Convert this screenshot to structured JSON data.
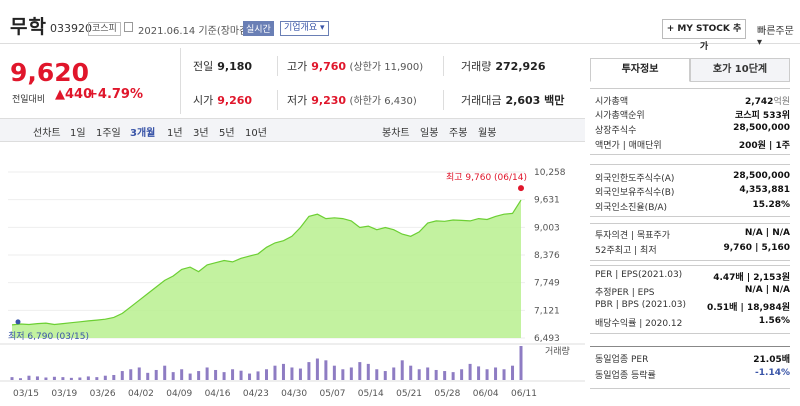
{
  "header": {
    "name": "무학",
    "code": "033920",
    "market": "코스피",
    "basedate": "2021.06.14 기준(장마감)",
    "realtime": "실시간",
    "corp": "기업개요",
    "corp_arrow": "▾",
    "mystock": "+ MY STOCK 추가",
    "quick": "빠른주문",
    "quick_arrow": "▾"
  },
  "price": {
    "current": "9,620",
    "change_label": "전일대비",
    "change": "▲440",
    "change_pct": "+4.79%"
  },
  "quotes": {
    "prev_label": "전일",
    "prev": "9,180",
    "high_label": "고가",
    "high": "9,760",
    "upper": "(상한가 11,900)",
    "volume_label": "거래량",
    "volume": "272,926",
    "open_label": "시가",
    "open": "9,260",
    "low_label": "저가",
    "low": "9,230",
    "lower": "(하한가 6,430)",
    "amount_label": "거래대금",
    "amount": "2,603 백만"
  },
  "period_tabs": {
    "line": "선차트",
    "d1": "1일",
    "w1": "1주일",
    "m3": "3개월",
    "y1": "1년",
    "y3": "3년",
    "y5": "5년",
    "y10": "10년",
    "candle": "봉차트",
    "day": "일봉",
    "week": "주봉",
    "month": "월봉"
  },
  "chart_data": {
    "type": "area",
    "y_ticks": [
      "10,258",
      "9,631",
      "9,003",
      "8,376",
      "7,749",
      "7,121",
      "6,493"
    ],
    "ylim": [
      6493,
      10258
    ],
    "x_ticks": [
      "03/15",
      "03/19",
      "03/26",
      "04/02",
      "04/09",
      "04/16",
      "04/23",
      "04/30",
      "05/07",
      "05/14",
      "05/21",
      "05/28",
      "06/04",
      "06/11"
    ],
    "max_label": "최고 9,760 (06/14)",
    "min_label": "최저 6,790 (03/15)",
    "volume_label": "거래량",
    "prices": [
      6790,
      6810,
      6800,
      6820,
      6830,
      6800,
      6820,
      6840,
      6860,
      6880,
      6900,
      6920,
      6960,
      7050,
      7200,
      7350,
      7500,
      7650,
      7800,
      7900,
      8050,
      8100,
      8000,
      8150,
      8200,
      8250,
      8220,
      8300,
      8350,
      8400,
      8550,
      8650,
      8700,
      8800,
      9000,
      9250,
      9300,
      9200,
      9220,
      9200,
      9150,
      9000,
      9030,
      8950,
      9000,
      8950,
      8850,
      8800,
      8900,
      9100,
      9150,
      9140,
      9170,
      9160,
      9150,
      9200,
      9180,
      9250,
      9300,
      9320,
      9620
    ],
    "volumes": [
      8,
      5,
      12,
      10,
      7,
      9,
      8,
      6,
      7,
      10,
      8,
      12,
      14,
      25,
      30,
      35,
      20,
      28,
      40,
      22,
      30,
      18,
      25,
      35,
      28,
      22,
      30,
      26,
      18,
      24,
      30,
      40,
      45,
      35,
      32,
      50,
      60,
      55,
      40,
      30,
      35,
      50,
      45,
      30,
      25,
      35,
      55,
      40,
      30,
      35,
      28,
      25,
      22,
      30,
      45,
      38,
      30,
      35,
      30,
      40,
      95
    ]
  },
  "right_panel": {
    "tab_info": "투자정보",
    "tab_ask": "호가 10단계",
    "rows": [
      {
        "k": "시가총액",
        "v": "2,742",
        "u": "억원"
      },
      {
        "k": "시가총액순위",
        "v": "코스피 533위",
        "u": ""
      },
      {
        "k": "상장주식수",
        "v": "28,500,000",
        "u": ""
      },
      {
        "k": "액면가 | 매매단위",
        "v": "200원 | 1주",
        "u": ""
      },
      {
        "k": "외국인한도주식수(A)",
        "v": "28,500,000",
        "u": ""
      },
      {
        "k": "외국인보유주식수(B)",
        "v": "4,353,881",
        "u": ""
      },
      {
        "k": "외국인소진율(B/A)",
        "v": "15.28%",
        "u": ""
      },
      {
        "k": "투자의견 | 목표주가",
        "v": "N/A | N/A",
        "u": ""
      },
      {
        "k": "52주최고 | 최저",
        "v": "9,760 | 5,160",
        "u": ""
      },
      {
        "k": "PER | EPS(2021.03)",
        "v": "4.47배 | 2,153원",
        "u": ""
      },
      {
        "k": "추정PER | EPS",
        "v": "N/A | N/A",
        "u": ""
      },
      {
        "k": "PBR | BPS (2021.03)",
        "v": "0.51배 | 18,984원",
        "u": ""
      },
      {
        "k": "배당수익률 | 2020.12",
        "v": "1.56%",
        "u": ""
      },
      {
        "k": "동일업종 PER",
        "v": "21.05배",
        "u": ""
      },
      {
        "k": "동일업종 등락률",
        "v": "-1.14%",
        "u": ""
      }
    ]
  },
  "colors": {
    "up": "#e0162b",
    "area_fill": "#b9f08f",
    "area_line": "#6ccf33",
    "volume": "#8e7cc3",
    "blue": "#3a55a8"
  }
}
